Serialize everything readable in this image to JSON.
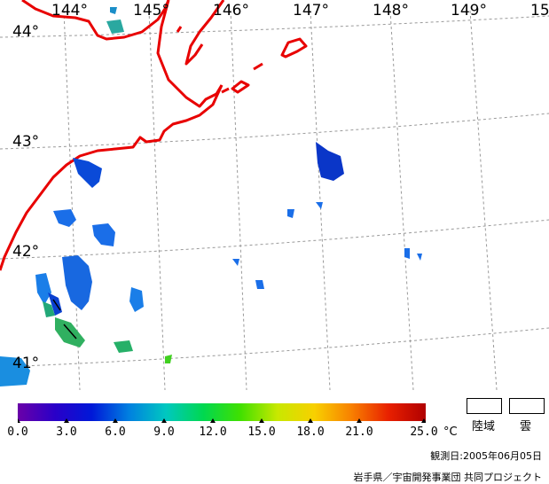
{
  "map": {
    "lon_labels": [
      "144°",
      "145°",
      "146°",
      "147°",
      "148°",
      "149°",
      "15"
    ],
    "lat_labels": [
      "44°",
      "43°",
      "42°",
      "41°"
    ]
  },
  "colorbar": {
    "ticks": [
      "0.0",
      "3.0",
      "6.0",
      "9.0",
      "12.0",
      "15.0",
      "18.0",
      "21.0",
      "25.0"
    ],
    "unit": "°C",
    "colors": [
      "#6a00a8",
      "#2a00c8",
      "#0018d8",
      "#0080e0",
      "#00c8c0",
      "#00d850",
      "#40e000",
      "#c8e800",
      "#f8d000",
      "#f88000",
      "#e82000",
      "#b00000"
    ]
  },
  "legend": {
    "land_label": "陸域",
    "cloud_label": "雲"
  },
  "footer": {
    "observation_date": "観測日:2005年06月05日",
    "credit": "岩手県／宇宙開発事業団 共同プロジェクト"
  }
}
